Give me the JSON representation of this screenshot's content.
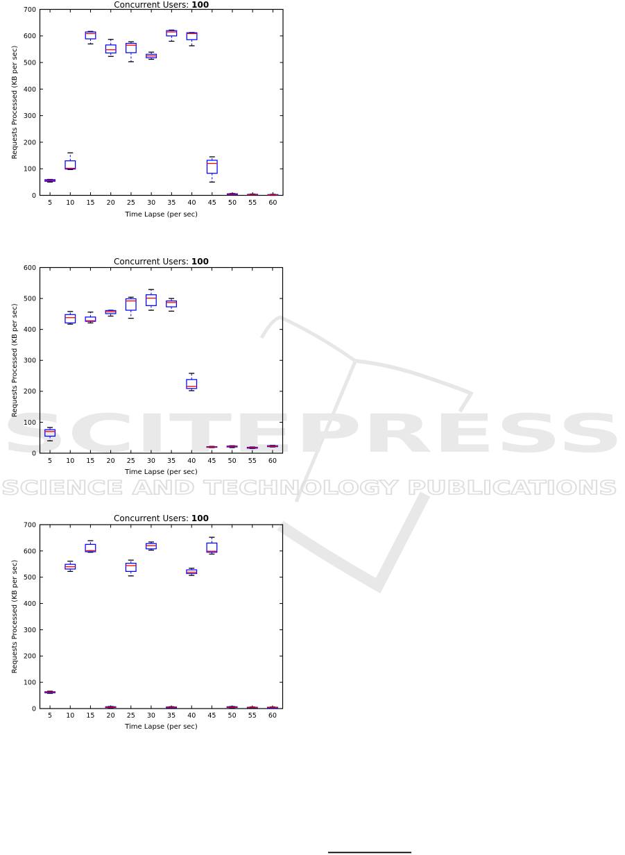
{
  "watermark": {
    "title": "SCITEPRESS",
    "subtitle": "SCIENCE AND TECHNOLOGY PUBLICATIONS",
    "wordmark_color": "#e9e9e9",
    "subtitle_color": "#dedede",
    "curve_color": "#e7e7e7"
  },
  "colors": {
    "box": "#0000ff",
    "median": "#ff0000",
    "whisker": "#0000ff",
    "cap": "#000000",
    "axis": "#000000"
  },
  "chart_data": [
    {
      "type": "boxplot",
      "title_prefix": "Concurrent Users: ",
      "title_value": "100",
      "xlabel": "Time Lapse (per sec)",
      "ylabel": "Requests Processed (KB per sec)",
      "ylim": [
        0,
        700
      ],
      "yticks": [
        0,
        100,
        200,
        300,
        400,
        500,
        600,
        700
      ],
      "categories": [
        5,
        10,
        15,
        20,
        25,
        30,
        35,
        40,
        45,
        50,
        55,
        60
      ],
      "boxes": [
        {
          "whislo": 50,
          "q1": 53,
          "med": 56,
          "q3": 59,
          "whishi": 60
        },
        {
          "whislo": 97,
          "q1": 99,
          "med": 102,
          "q3": 130,
          "whishi": 160
        },
        {
          "whislo": 570,
          "q1": 589,
          "med": 609,
          "q3": 615,
          "whishi": 617
        },
        {
          "whislo": 523,
          "q1": 536,
          "med": 548,
          "q3": 566,
          "whishi": 587
        },
        {
          "whislo": 503,
          "q1": 537,
          "med": 565,
          "q3": 572,
          "whishi": 578
        },
        {
          "whislo": 512,
          "q1": 518,
          "med": 525,
          "q3": 531,
          "whishi": 539
        },
        {
          "whislo": 580,
          "q1": 600,
          "med": 615,
          "q3": 620,
          "whishi": 622
        },
        {
          "whislo": 563,
          "q1": 586,
          "med": 609,
          "q3": 612,
          "whishi": 613
        },
        {
          "whislo": 50,
          "q1": 83,
          "med": 120,
          "q3": 132,
          "whishi": 145
        },
        {
          "whislo": 1,
          "q1": 2,
          "med": 4,
          "q3": 6,
          "whishi": 7
        },
        {
          "whislo": 1,
          "q1": 2,
          "med": 3,
          "q3": 4,
          "whishi": 5
        },
        {
          "whislo": 0,
          "q1": 1,
          "med": 2,
          "q3": 3,
          "whishi": 4
        }
      ]
    },
    {
      "type": "boxplot",
      "title_prefix": "Concurrent Users: ",
      "title_value": "100",
      "xlabel": "Time Lapse (per sec)",
      "ylabel": "Requests Processed (KB per sec)",
      "ylim": [
        0,
        600
      ],
      "yticks": [
        0,
        100,
        200,
        300,
        400,
        500,
        600
      ],
      "categories": [
        5,
        10,
        15,
        20,
        25,
        30,
        35,
        40,
        45,
        50,
        55,
        60
      ],
      "boxes": [
        {
          "whislo": 40,
          "q1": 55,
          "med": 70,
          "q3": 76,
          "whishi": 83
        },
        {
          "whislo": 417,
          "q1": 421,
          "med": 438,
          "q3": 448,
          "whishi": 458
        },
        {
          "whislo": 421,
          "q1": 426,
          "med": 428,
          "q3": 440,
          "whishi": 456
        },
        {
          "whislo": 443,
          "q1": 451,
          "med": 457,
          "q3": 461,
          "whishi": 462
        },
        {
          "whislo": 436,
          "q1": 462,
          "med": 492,
          "q3": 499,
          "whishi": 504
        },
        {
          "whislo": 462,
          "q1": 477,
          "med": 501,
          "q3": 512,
          "whishi": 529
        },
        {
          "whislo": 459,
          "q1": 473,
          "med": 487,
          "q3": 492,
          "whishi": 500
        },
        {
          "whislo": 202,
          "q1": 209,
          "med": 216,
          "q3": 238,
          "whishi": 258
        },
        {
          "whislo": 18,
          "q1": 19,
          "med": 20,
          "q3": 21,
          "whishi": 22
        },
        {
          "whislo": 18,
          "q1": 20,
          "med": 21,
          "q3": 23,
          "whishi": 24
        },
        {
          "whislo": 15,
          "q1": 16,
          "med": 17,
          "q3": 19,
          "whishi": 20
        },
        {
          "whislo": 20,
          "q1": 21,
          "med": 22,
          "q3": 24,
          "whishi": 25
        }
      ]
    },
    {
      "type": "boxplot",
      "title_prefix": "Concurrent Users: ",
      "title_value": "100",
      "xlabel": "Time Lapse (per sec)",
      "ylabel": "Requests Processed (KB per sec)",
      "ylim": [
        0,
        700
      ],
      "yticks": [
        0,
        100,
        200,
        300,
        400,
        500,
        600,
        700
      ],
      "categories": [
        5,
        10,
        15,
        20,
        25,
        30,
        35,
        40,
        45,
        50,
        55,
        60
      ],
      "boxes": [
        {
          "whislo": 58,
          "q1": 60,
          "med": 62,
          "q3": 64,
          "whishi": 66
        },
        {
          "whislo": 522,
          "q1": 531,
          "med": 540,
          "q3": 549,
          "whishi": 561
        },
        {
          "whislo": 595,
          "q1": 597,
          "med": 601,
          "q3": 625,
          "whishi": 639
        },
        {
          "whislo": 2,
          "q1": 4,
          "med": 5,
          "q3": 7,
          "whishi": 8
        },
        {
          "whislo": 505,
          "q1": 522,
          "med": 544,
          "q3": 553,
          "whishi": 565
        },
        {
          "whislo": 603,
          "q1": 608,
          "med": 620,
          "q3": 628,
          "whishi": 634
        },
        {
          "whislo": 2,
          "q1": 3,
          "med": 4,
          "q3": 6,
          "whishi": 7
        },
        {
          "whislo": 507,
          "q1": 514,
          "med": 519,
          "q3": 528,
          "whishi": 534
        },
        {
          "whislo": 588,
          "q1": 595,
          "med": 599,
          "q3": 630,
          "whishi": 652
        },
        {
          "whislo": 2,
          "q1": 4,
          "med": 5,
          "q3": 7,
          "whishi": 8
        },
        {
          "whislo": 1,
          "q1": 3,
          "med": 4,
          "q3": 5,
          "whishi": 6
        },
        {
          "whislo": 1,
          "q1": 2,
          "med": 4,
          "q3": 5,
          "whishi": 6
        }
      ]
    }
  ]
}
